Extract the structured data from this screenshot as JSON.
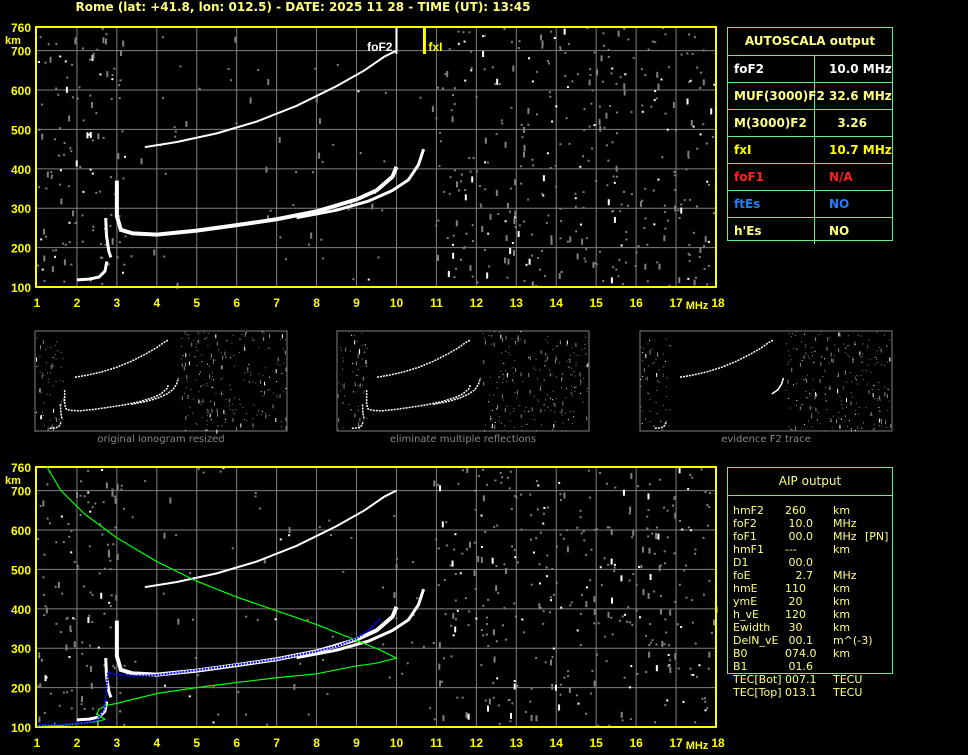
{
  "header": {
    "title": "Rome (lat: +41.8, lon: 012.5) - DATE: 2025 11 28 - TIME (UT): 13:45"
  },
  "colors": {
    "axis": "#ffff00",
    "grid": "#808080",
    "trace": "#ffffff",
    "profile": "#00ff00",
    "fitted": "#0000ff",
    "box": "#66ee88",
    "text": "#ffff80"
  },
  "ionogram": {
    "y_unit": "km",
    "x_unit": "MHz",
    "y_ticks": [
      "100",
      "200",
      "300",
      "400",
      "500",
      "600",
      "700",
      "760"
    ],
    "x_ticks": [
      "1",
      "2",
      "3",
      "4",
      "5",
      "6",
      "7",
      "8",
      "9",
      "10",
      "11",
      "12",
      "13",
      "14",
      "15",
      "16",
      "17",
      "18"
    ],
    "xlim": [
      1,
      18
    ],
    "ylim": [
      100,
      760
    ],
    "foF2_marker": {
      "label": "foF2",
      "freq": 10.0
    },
    "fxI_marker": {
      "label": "fxI",
      "freq": 10.7
    }
  },
  "traces": {
    "e_layer": [
      [
        2.0,
        118
      ],
      [
        2.3,
        120
      ],
      [
        2.55,
        125
      ],
      [
        2.7,
        140
      ],
      [
        2.75,
        165
      ]
    ],
    "cusp": [
      [
        2.72,
        275
      ],
      [
        2.74,
        230
      ],
      [
        2.8,
        190
      ],
      [
        2.85,
        175
      ]
    ],
    "f2_o": [
      [
        3.0,
        370
      ],
      [
        3.0,
        280
      ],
      [
        3.1,
        245
      ],
      [
        3.4,
        236
      ],
      [
        4,
        233
      ],
      [
        5,
        243
      ],
      [
        6,
        257
      ],
      [
        7,
        272
      ],
      [
        8,
        292
      ],
      [
        9,
        322
      ],
      [
        9.5,
        345
      ],
      [
        9.9,
        380
      ],
      [
        10.0,
        405
      ]
    ],
    "f2_x": [
      [
        7.5,
        276
      ],
      [
        8.5,
        295
      ],
      [
        9.3,
        318
      ],
      [
        9.9,
        345
      ],
      [
        10.3,
        372
      ],
      [
        10.55,
        410
      ],
      [
        10.68,
        450
      ]
    ],
    "multi_hop": [
      [
        3.7,
        455
      ],
      [
        4.5,
        468
      ],
      [
        5.5,
        490
      ],
      [
        6.5,
        520
      ],
      [
        7.5,
        560
      ],
      [
        8.5,
        610
      ],
      [
        9.2,
        650
      ],
      [
        9.7,
        685
      ],
      [
        10.0,
        700
      ]
    ],
    "profile": [
      [
        1.25,
        760
      ],
      [
        1.6,
        700
      ],
      [
        2.2,
        640
      ],
      [
        3,
        580
      ],
      [
        4,
        520
      ],
      [
        5,
        470
      ],
      [
        6,
        430
      ],
      [
        7,
        395
      ],
      [
        8,
        360
      ],
      [
        9,
        320
      ],
      [
        9.6,
        295
      ],
      [
        10.0,
        275
      ],
      [
        9.5,
        262
      ],
      [
        9,
        255
      ],
      [
        8,
        235
      ],
      [
        7,
        225
      ],
      [
        6,
        213
      ],
      [
        5,
        200
      ],
      [
        4,
        185
      ],
      [
        3,
        160
      ],
      [
        2.75,
        155
      ],
      [
        2.55,
        145
      ],
      [
        2.5,
        133
      ],
      [
        2.7,
        120
      ],
      [
        2.6,
        116
      ],
      [
        2.2,
        110
      ],
      [
        1.6,
        104
      ],
      [
        1.0,
        103
      ]
    ],
    "fitted": [
      [
        1.0,
        104
      ],
      [
        1.7,
        107
      ],
      [
        2.2,
        110
      ],
      [
        2.5,
        118
      ],
      [
        2.65,
        140
      ],
      [
        2.7,
        150
      ],
      [
        2.78,
        240
      ],
      [
        3.0,
        232
      ],
      [
        3.5,
        230
      ],
      [
        4,
        232
      ],
      [
        5,
        244
      ],
      [
        6,
        258
      ],
      [
        7,
        272
      ],
      [
        8,
        292
      ],
      [
        8.5,
        305
      ],
      [
        9,
        325
      ],
      [
        9.3,
        345
      ],
      [
        9.6,
        375
      ]
    ]
  },
  "autoscala": {
    "title": "AUTOSCALA output",
    "rows": [
      {
        "key": "foF2",
        "value": "10.0 MHz",
        "color": "#ffffff"
      },
      {
        "key": "MUF(3000)F2",
        "value": "32.6 MHz",
        "color": "#ffff80"
      },
      {
        "key": "M(3000)F2",
        "value": "  3.26",
        "color": "#ffff80"
      },
      {
        "key": "fxI",
        "value": "10.7 MHz",
        "color": "#ffff00"
      },
      {
        "key": "foF1",
        "value": "N/A",
        "color": "#ff2020"
      },
      {
        "key": "ftEs",
        "value": "NO",
        "color": "#1e7fff"
      },
      {
        "key": "h'Es",
        "value": "NO",
        "color": "#ffff80"
      }
    ]
  },
  "thumbnails": [
    {
      "caption": "original ionogram resized"
    },
    {
      "caption": "eliminate multiple reflections"
    },
    {
      "caption": "evidence F2 trace"
    }
  ],
  "aip": {
    "title": "AIP output",
    "rows": [
      [
        "hmF2",
        "260",
        "km",
        ""
      ],
      [
        "foF2",
        " 10.0",
        "MHz",
        ""
      ],
      [
        "foF1",
        " 00.0",
        "MHz",
        "[PN]"
      ],
      [
        "hmF1",
        "---",
        "km",
        ""
      ],
      [
        "D1",
        " 00.0",
        "",
        ""
      ],
      [
        "foE",
        "   2.7",
        "MHz",
        ""
      ],
      [
        "hmE",
        "110",
        "km",
        ""
      ],
      [
        "ymE",
        " 20",
        "km",
        ""
      ],
      [
        "h_vE",
        "120",
        "km",
        ""
      ],
      [
        "Ewidth",
        " 30",
        "km",
        ""
      ],
      [
        "DelN_vE",
        " 00.1",
        "m^(-3)",
        ""
      ],
      [
        "B0",
        "074.0",
        "km",
        ""
      ],
      [
        "B1",
        " 01.6",
        "",
        ""
      ],
      [
        "TEC[Bot]",
        "007.1",
        "TECU",
        ""
      ],
      [
        "TEC[Top]",
        "013.1",
        "TECU",
        ""
      ]
    ]
  }
}
